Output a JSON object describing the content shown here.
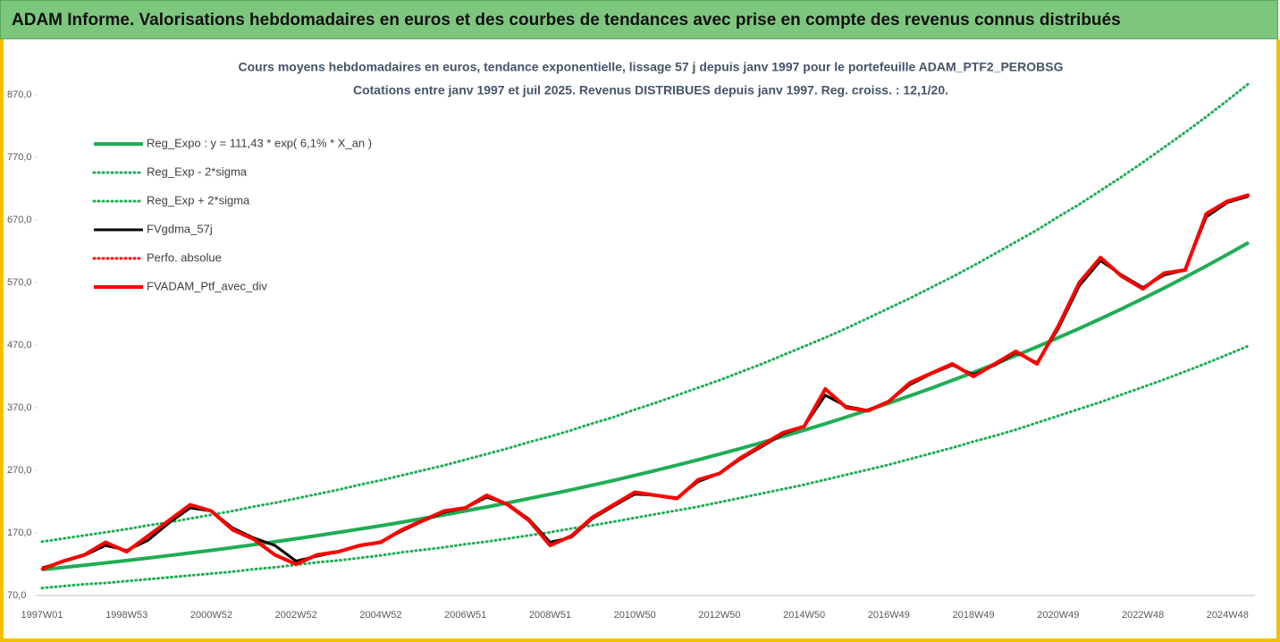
{
  "header": {
    "title": "ADAM Informe. Valorisations hebdomadaires en euros et des courbes de tendances avec prise en compte des revenus connus distribués"
  },
  "chart_data": {
    "type": "line",
    "title": "Cours moyens hebdomadaires  en euros, tendance exponentielle, lissage 57 j depuis janv 1997 pour le portefeuille ADAM_PTF2_PEROBSG",
    "subtitle": "Cotations  entre janv 1997 et juil 2025. Revenus DISTRIBUES depuis janv 1997. Reg. croiss. : 12,1/20.",
    "categories": [
      "1997W01",
      null,
      null,
      null,
      "1998W53",
      null,
      null,
      null,
      "2000W52",
      null,
      null,
      null,
      "2002W52",
      null,
      null,
      null,
      "2004W52",
      null,
      null,
      null,
      "2006W51",
      null,
      null,
      null,
      "2008W51",
      null,
      null,
      null,
      "2010W50",
      null,
      null,
      null,
      "2012W50",
      null,
      null,
      null,
      "2014W50",
      null,
      null,
      null,
      "2016W49",
      null,
      null,
      null,
      "2018W49",
      null,
      null,
      null,
      "2020W49",
      null,
      null,
      null,
      "2022W48",
      null,
      null,
      null,
      "2024W48",
      null
    ],
    "ylim": [
      70,
      930
    ],
    "yticks": [
      {
        "value": 70,
        "label": "70,0"
      },
      {
        "value": 170,
        "label": "170,0"
      },
      {
        "value": 270,
        "label": "270,0"
      },
      {
        "value": 370,
        "label": "370,0"
      },
      {
        "value": 470,
        "label": "470,0"
      },
      {
        "value": 570,
        "label": "570,0"
      },
      {
        "value": 670,
        "label": "670,0"
      },
      {
        "value": 770,
        "label": "770,0"
      },
      {
        "value": 870,
        "label": "870,0"
      }
    ],
    "series": [
      {
        "name": "Reg_Expo : y = 111,43 * exp( 6,1% *  X_an )",
        "color": "#1fad55",
        "style": "solid",
        "values": [
          111.4,
          114.9,
          118.4,
          122.1,
          125.9,
          129.8,
          133.8,
          138.0,
          142.2,
          146.6,
          151.2,
          155.9,
          160.7,
          165.7,
          170.8,
          176.1,
          181.5,
          187.2,
          193.0,
          198.9,
          205.1,
          211.4,
          218.0,
          224.8,
          231.7,
          238.9,
          246.3,
          253.9,
          261.8,
          269.9,
          278.3,
          286.9,
          295.8,
          304.9,
          314.4,
          324.1,
          334.1,
          344.5,
          355.2,
          366.2,
          377.5,
          389.2,
          401.2,
          413.7,
          426.5,
          439.7,
          453.3,
          467.3,
          481.8,
          496.7,
          512.1,
          528.0,
          544.4,
          561.2,
          578.6,
          596.5,
          615.0,
          634.0
        ]
      },
      {
        "name": "Reg_Exp - 2*sigma",
        "color": "#1fad55",
        "style": "dotted",
        "values": [
          82,
          85,
          88,
          90,
          93,
          96,
          99,
          102,
          105,
          108,
          112,
          115,
          119,
          123,
          126,
          130,
          134,
          139,
          143,
          147,
          152,
          156,
          161,
          166,
          171,
          177,
          182,
          188,
          194,
          200,
          206,
          212,
          219,
          226,
          233,
          240,
          247,
          255,
          263,
          271,
          279,
          288,
          297,
          306,
          316,
          325,
          335,
          346,
          357,
          368,
          379,
          391,
          403,
          415,
          428,
          441,
          455,
          469
        ]
      },
      {
        "name": "Reg_Exp + 2*sigma",
        "color": "#1fad55",
        "style": "dotted",
        "values": [
          156,
          161,
          166,
          171,
          176,
          182,
          187,
          193,
          199,
          205,
          212,
          218,
          225,
          232,
          239,
          247,
          254,
          262,
          270,
          278,
          287,
          296,
          305,
          315,
          324,
          334,
          345,
          355,
          367,
          378,
          390,
          402,
          414,
          427,
          440,
          454,
          468,
          482,
          497,
          513,
          529,
          545,
          562,
          579,
          597,
          616,
          635,
          654,
          675,
          695,
          717,
          739,
          762,
          786,
          810,
          835,
          861,
          888
        ]
      },
      {
        "name": "FVgdma_57j",
        "color": "#000000",
        "style": "solid",
        "values": [
          114,
          124,
          134,
          150,
          142,
          158,
          186,
          210,
          205,
          178,
          162,
          150,
          125,
          133,
          140,
          149,
          156,
          173,
          189,
          203,
          210,
          227,
          216,
          192,
          155,
          163,
          193,
          213,
          232,
          230,
          226,
          252,
          265,
          288,
          308,
          328,
          340,
          390,
          372,
          366,
          380,
          407,
          424,
          438,
          423,
          438,
          458,
          442,
          496,
          565,
          605,
          582,
          562,
          582,
          590,
          675,
          698,
          708
        ]
      },
      {
        "name": "Perfo. absolue",
        "color": "#ff0000",
        "style": "dotted",
        "values": [
          112,
          125,
          135,
          155,
          140,
          165,
          190,
          215,
          205,
          175,
          160,
          135,
          120,
          135,
          140,
          150,
          155,
          175,
          190,
          205,
          210,
          230,
          215,
          190,
          150,
          165,
          195,
          215,
          235,
          230,
          225,
          255,
          265,
          290,
          310,
          330,
          340,
          400,
          370,
          365,
          380,
          410,
          425,
          440,
          420,
          440,
          460,
          440,
          500,
          570,
          610,
          580,
          560,
          585,
          590,
          680,
          700,
          710
        ]
      },
      {
        "name": "FVADAM_Ptf_avec_div",
        "color": "#ff0000",
        "style": "solid",
        "values": [
          112,
          125,
          135,
          155,
          140,
          165,
          190,
          215,
          205,
          175,
          160,
          135,
          120,
          135,
          140,
          150,
          155,
          175,
          190,
          205,
          210,
          230,
          215,
          190,
          150,
          165,
          195,
          215,
          235,
          230,
          225,
          255,
          265,
          290,
          310,
          330,
          340,
          400,
          370,
          365,
          380,
          410,
          425,
          440,
          420,
          440,
          460,
          440,
          500,
          570,
          610,
          580,
          560,
          585,
          590,
          680,
          700,
          710
        ]
      }
    ],
    "grid": false
  }
}
